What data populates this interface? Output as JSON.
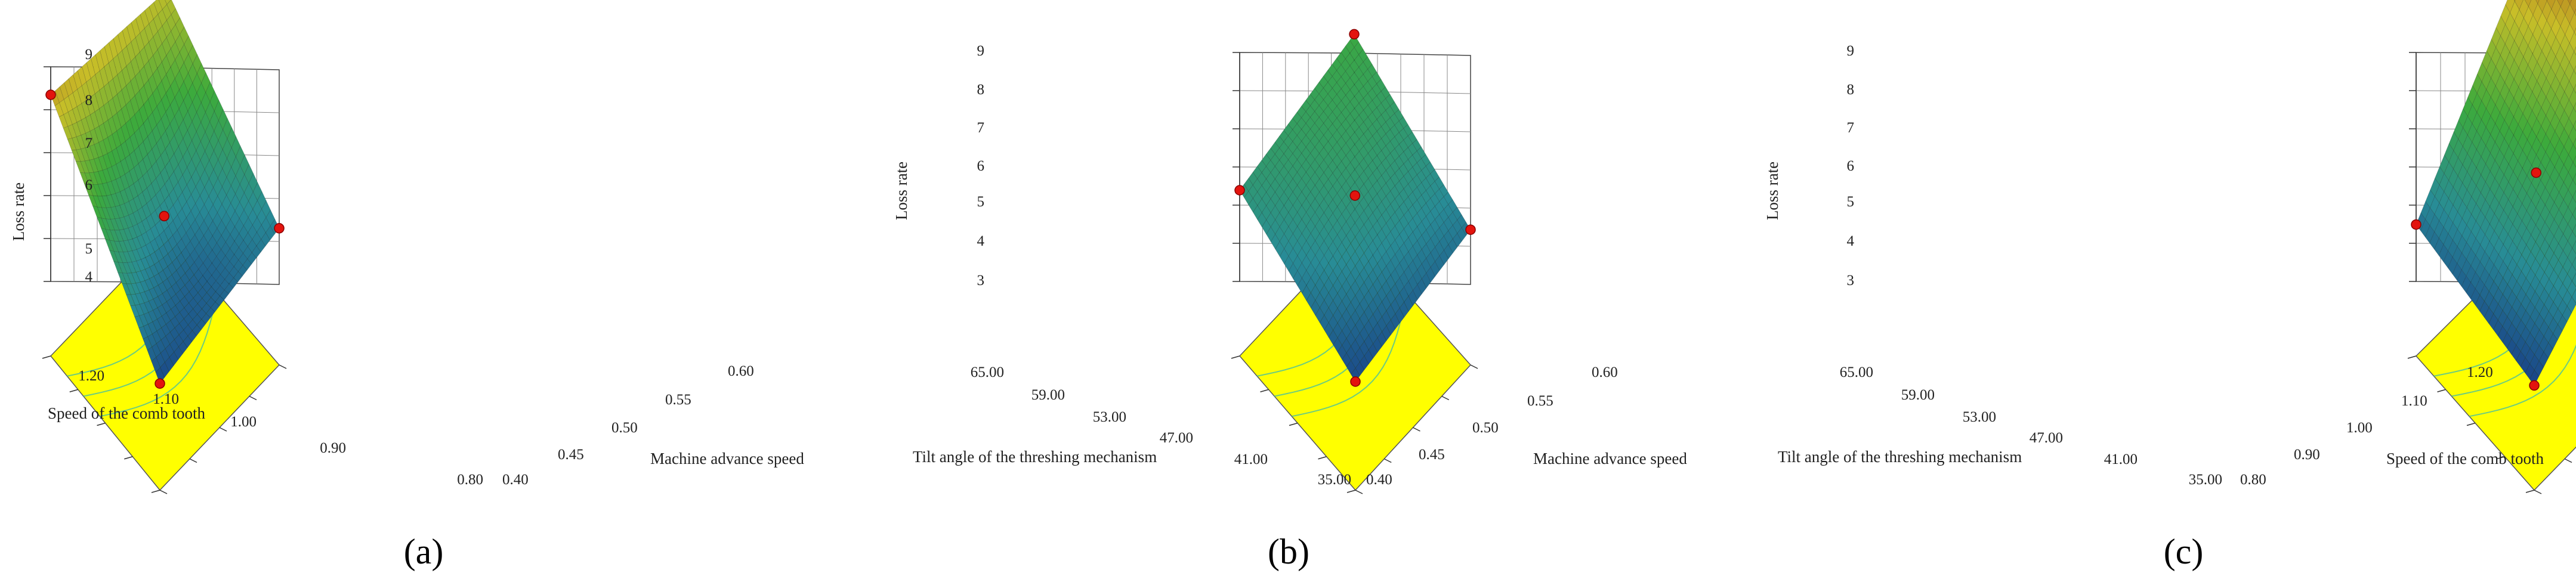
{
  "chart_data": [
    {
      "type": "surface3d",
      "panel_label": "(a)",
      "zlabel": "Loss rate",
      "z_ticks": [
        "4",
        "5",
        "6",
        "7",
        "8",
        "9"
      ],
      "zlim": [
        4,
        9
      ],
      "x_label": "Machine advance speed",
      "x_ticks": [
        "0.40",
        "0.45",
        "0.50",
        "0.55",
        "0.60"
      ],
      "xlim": [
        0.4,
        0.6
      ],
      "y_label": "Speed of the comb tooth",
      "y_ticks": [
        "0.80",
        "0.90",
        "1.00",
        "1.10",
        "1.20"
      ],
      "ylim": [
        0.8,
        1.2
      ],
      "surface_corners": {
        "near": 4.4,
        "right": 5.1,
        "back": 7.6,
        "left": 8.0
      },
      "center_point": 5.3,
      "floor_color": "#ffff00"
    },
    {
      "type": "surface3d",
      "panel_label": "(b)",
      "zlabel": "Loss rate",
      "z_ticks": [
        "3",
        "4",
        "5",
        "6",
        "7",
        "8",
        "9"
      ],
      "zlim": [
        3,
        9
      ],
      "x_label": "Machine advance speed",
      "x_ticks": [
        "0.40",
        "0.45",
        "0.50",
        "0.55",
        "0.60"
      ],
      "xlim": [
        0.4,
        0.6
      ],
      "y_label": "Tilt angle of the threshing mechanism",
      "y_ticks": [
        "35.00",
        "41.00",
        "47.00",
        "53.00",
        "59.00",
        "65.00"
      ],
      "ylim": [
        35.0,
        65.0
      ],
      "surface_corners": {
        "near": 3.5,
        "right": 4.2,
        "back": 5.9,
        "left": 5.0
      },
      "center_point": 5.0,
      "floor_color": "#ffff00"
    },
    {
      "type": "surface3d",
      "panel_label": "(c)",
      "zlabel": "Loss rate",
      "z_ticks": [
        "3",
        "4",
        "5",
        "6",
        "7",
        "8",
        "9"
      ],
      "zlim": [
        3,
        9
      ],
      "x_label": "Speed of the comb tooth",
      "x_ticks": [
        "0.80",
        "0.90",
        "1.00",
        "1.10",
        "1.20"
      ],
      "xlim": [
        0.8,
        1.2
      ],
      "y_label": "Tilt angle of the threshing mechanism",
      "y_ticks": [
        "35.00",
        "41.00",
        "47.00",
        "53.00",
        "59.00",
        "65.00"
      ],
      "ylim": [
        35.0,
        65.0
      ],
      "surface_corners": {
        "near": 3.4,
        "right": 6.3,
        "back": 8.8,
        "left": 4.1
      },
      "center_point": 5.6,
      "floor_color": "#ffff00"
    }
  ]
}
